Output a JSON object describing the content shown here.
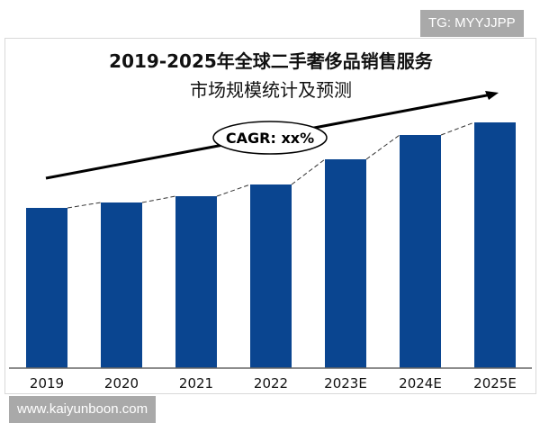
{
  "watermarks": {
    "top_right": "TG: MYYJJPP",
    "bottom_left": "www.kaiyunboon.com"
  },
  "chart_data": {
    "type": "bar",
    "title_line1": "2019-2025年全球二手奢侈品销售服务",
    "title_line2": "市场规模统计及预测",
    "categories": [
      "2019",
      "2020",
      "2021",
      "2022",
      "2023E",
      "2024E",
      "2025E"
    ],
    "values": [
      178,
      184,
      191,
      204,
      232,
      259,
      273
    ],
    "ylim": [
      0,
      300
    ],
    "annotation": "CAGR: xx%",
    "xlabel": "",
    "ylabel": "",
    "grid": false,
    "bar_color": "#0a4590"
  }
}
